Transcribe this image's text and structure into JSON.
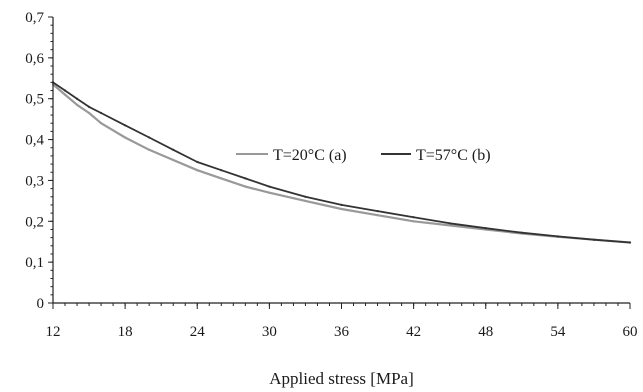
{
  "chart_data": {
    "type": "line",
    "title": "",
    "xlabel": "Applied stress [MPa]",
    "ylabel": "",
    "xlim": [
      12,
      60
    ],
    "ylim": [
      0,
      0.7
    ],
    "grid": false,
    "legend_placement": "center",
    "x_ticks": [
      12,
      18,
      24,
      30,
      36,
      42,
      48,
      54,
      60
    ],
    "x_tick_labels": [
      "12",
      "18",
      "24",
      "30",
      "36",
      "42",
      "48",
      "54",
      "60"
    ],
    "y_ticks": [
      0,
      0.1,
      0.2,
      0.3,
      0.4,
      0.5,
      0.6,
      0.7
    ],
    "y_tick_labels": [
      "0",
      "0,1",
      "0,2",
      "0,3",
      "0,4",
      "0,5",
      "0,6",
      "0,7"
    ],
    "series": [
      {
        "name": "T=20°C (a)",
        "color": "#999999",
        "x": [
          12,
          13,
          14,
          15,
          16,
          18,
          20,
          22,
          24,
          26,
          28,
          30,
          33,
          36,
          39,
          42,
          45,
          48,
          51,
          54,
          57,
          60
        ],
        "y": [
          0.535,
          0.51,
          0.485,
          0.465,
          0.44,
          0.405,
          0.375,
          0.35,
          0.325,
          0.305,
          0.285,
          0.27,
          0.25,
          0.23,
          0.215,
          0.2,
          0.19,
          0.18,
          0.17,
          0.162,
          0.155,
          0.148
        ]
      },
      {
        "name": "T=57°C (b)",
        "color": "#333333",
        "x": [
          12,
          13,
          14,
          15,
          16,
          18,
          20,
          22,
          24,
          26,
          28,
          30,
          33,
          36,
          39,
          42,
          45,
          48,
          51,
          54,
          57,
          60
        ],
        "y": [
          0.54,
          0.52,
          0.5,
          0.48,
          0.465,
          0.435,
          0.405,
          0.375,
          0.345,
          0.325,
          0.305,
          0.285,
          0.26,
          0.24,
          0.225,
          0.21,
          0.195,
          0.183,
          0.172,
          0.163,
          0.155,
          0.148
        ]
      }
    ]
  }
}
